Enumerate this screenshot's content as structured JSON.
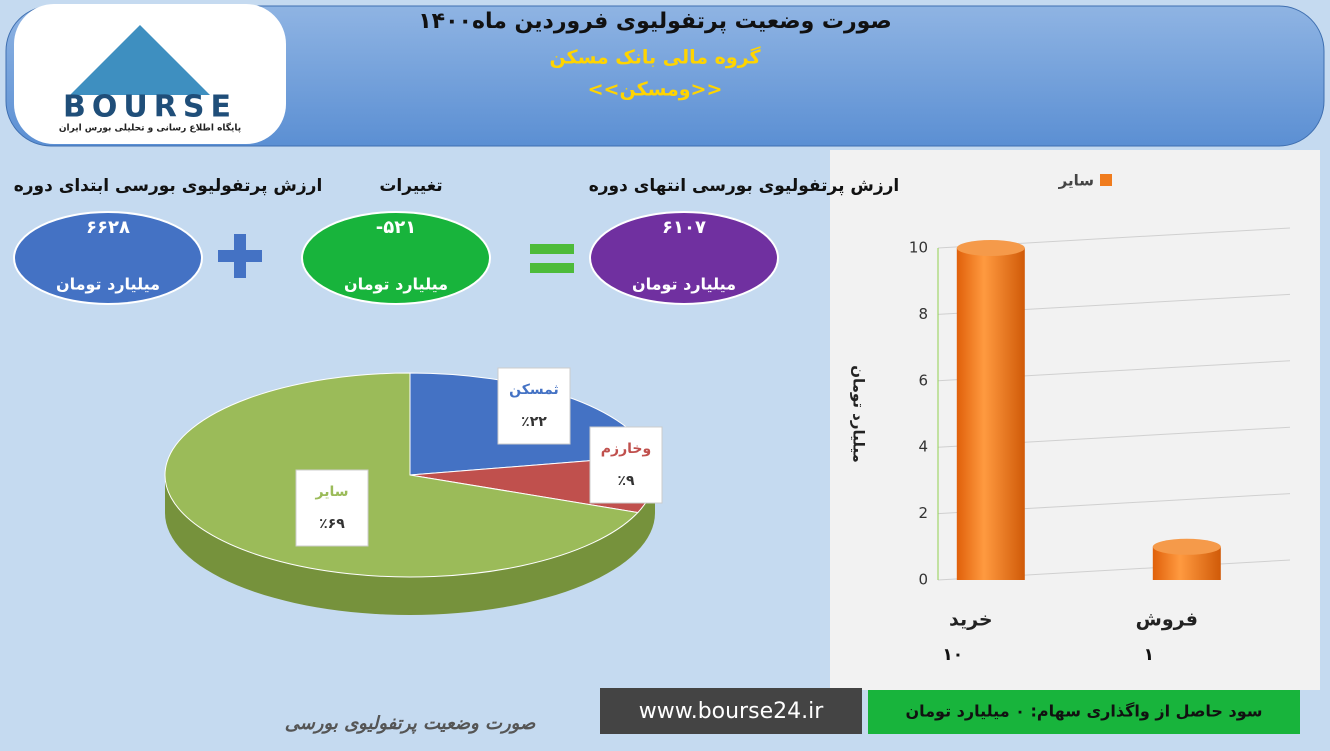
{
  "header": {
    "title": "صورت وضعیت پرتفولیوی فروردین ماه۱۴۰۰",
    "subtitle": "گروه مالی بانک مسکن",
    "symbol": "<<ومسکن>>"
  },
  "logo": {
    "name": "BOURSE",
    "tagline": "پایگاه اطلاع رسانی و تحلیلی بورس ایران"
  },
  "summary": [
    {
      "label": "ارزش پرتفولیوی بورسی ابتدای دوره",
      "value": "۶۶۲۸",
      "unit": "میلیارد تومان"
    },
    {
      "label": "تغییرات",
      "value": "-۵۲۱",
      "unit": "میلیارد تومان"
    },
    {
      "label": "ارزش پرتفولیوی بورسی انتهای دوره",
      "value": "۶۱۰۷",
      "unit": "میلیارد تومان"
    }
  ],
  "chart_data": [
    {
      "type": "pie",
      "categories": [
        "ثمسکن",
        "وخارزم",
        "سایر"
      ],
      "values": [
        22,
        9,
        69
      ],
      "value_labels": [
        "٪۲۲",
        "٪۹",
        "٪۶۹"
      ],
      "colors": [
        "#4472c4",
        "#c0504d",
        "#9bbb59"
      ]
    },
    {
      "type": "bar",
      "categories": [
        "خرید",
        "فروش"
      ],
      "series": [
        {
          "name": "سایر",
          "color": "#f07c1e",
          "values": [
            10,
            1
          ],
          "value_labels": [
            "۱۰",
            "۱"
          ]
        }
      ],
      "ylabel": "میلیارد تومان",
      "ylim": [
        0,
        10
      ],
      "yticks": [
        0,
        2,
        4,
        6,
        8,
        10
      ],
      "grid": true,
      "legend": "top"
    }
  ],
  "footer": {
    "website": "www.bourse24.ir",
    "gain": "سود حاصل از واگذاری سهام: ۰ میلیارد تومان",
    "caption": "صورت وضعیت پرتفولیوی بورسی"
  }
}
